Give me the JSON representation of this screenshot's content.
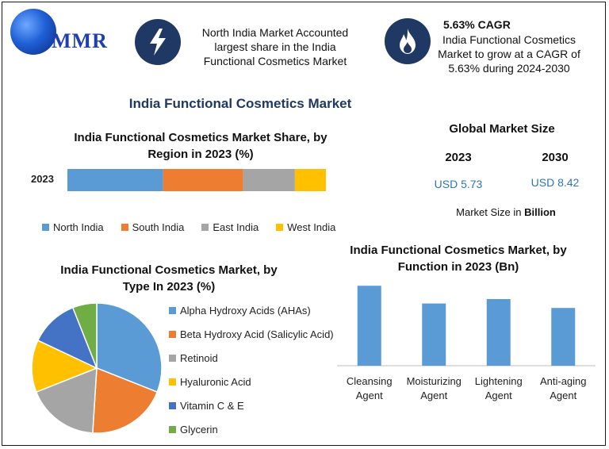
{
  "header": {
    "logo_text": "MMR",
    "info1": {
      "lines": [
        "North India Market Accounted",
        "largest share in the India",
        "Functional Cosmetics Market"
      ],
      "icon": "lightning-bolt-icon"
    },
    "info2": {
      "title": "5.63% CAGR",
      "lines": [
        "India Functional Cosmetics",
        "Market to grow at a CAGR of",
        "5.63% during 2024-2030"
      ],
      "icon": "flame-icon"
    }
  },
  "main_title": "India Functional Cosmetics Market",
  "global": {
    "title": "Global Market Size",
    "year1": "2023",
    "year2": "2030",
    "value1": "USD 5.73",
    "value2": "USD 8.42",
    "unit_prefix": "Market Size in ",
    "unit_bold": "Billion"
  },
  "chart_data": [
    {
      "type": "bar",
      "orientation": "horizontal-stacked",
      "title": "India Functional Cosmetics Market Share, by Region in 2023 (%)",
      "title_lines": [
        "India Functional Cosmetics Market Share, by",
        "Region in 2023 (%)"
      ],
      "categories": [
        "2023"
      ],
      "series": [
        {
          "name": "North India",
          "values": [
            37
          ],
          "color": "#5b9bd5"
        },
        {
          "name": "South India",
          "values": [
            31
          ],
          "color": "#ed7d31"
        },
        {
          "name": "East India",
          "values": [
            20
          ],
          "color": "#a5a5a5"
        },
        {
          "name": "West India",
          "values": [
            12
          ],
          "color": "#ffc000"
        }
      ],
      "xlim": [
        0,
        100
      ],
      "grid": false,
      "legend": "bottom"
    },
    {
      "type": "pie",
      "title": "India Functional Cosmetics Market, by Type In 2023 (%)",
      "title_lines": [
        "India Functional Cosmetics Market, by",
        "Type In 2023 (%)"
      ],
      "slices": [
        {
          "name": "Alpha Hydroxy Acids (AHAs)",
          "value": 31,
          "color": "#5b9bd5"
        },
        {
          "name": "Beta Hydroxy Acid (Salicylic Acid)",
          "value": 20,
          "color": "#ed7d31"
        },
        {
          "name": "Retinoid",
          "value": 18,
          "color": "#a5a5a5"
        },
        {
          "name": "Hyaluronic Acid",
          "value": 13,
          "color": "#ffc000"
        },
        {
          "name": "Vitamin C & E",
          "value": 12,
          "color": "#4472c4"
        },
        {
          "name": "Glycerin",
          "value": 6,
          "color": "#70ad47"
        }
      ],
      "legend": "right"
    },
    {
      "type": "bar",
      "title": "India Functional Cosmetics Market, by Function in 2023 (Bn)",
      "title_lines": [
        "India Functional Cosmetics Market, by",
        "Function in 2023 (Bn)"
      ],
      "categories": [
        "Cleansing Agent",
        "Moisturizing Agent",
        "Lightening Agent",
        "Anti-aging Agent"
      ],
      "category_lines": [
        [
          "Cleansing",
          "Agent"
        ],
        [
          "Moisturizing",
          "Agent"
        ],
        [
          "Lightening",
          "Agent"
        ],
        [
          "Anti-aging",
          "Agent"
        ]
      ],
      "values": [
        1.8,
        1.4,
        1.5,
        1.3
      ],
      "ylim": [
        0,
        2.0
      ],
      "color": "#5b9bd5",
      "grid": false
    }
  ]
}
